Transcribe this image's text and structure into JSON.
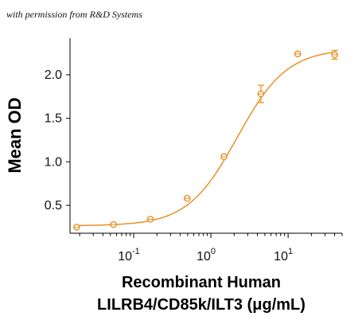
{
  "credit": "with permission from R&D Systems",
  "chart_data": {
    "type": "scatter",
    "x_scale": "log",
    "y_scale": "linear",
    "xlim": [
      0.015,
      50
    ],
    "ylim": [
      0.18,
      2.42
    ],
    "grid": false,
    "legend": "none",
    "ylabel": "Mean OD",
    "xlabel_lines": [
      "Recombinant Human",
      "LILRB4/CD85k/ILT3 (μg/mL)"
    ],
    "x_ticks": [
      {
        "value": 0.1,
        "base": "10",
        "exp": "-1"
      },
      {
        "value": 1,
        "base": "10",
        "exp": "0"
      },
      {
        "value": 10,
        "base": "10",
        "exp": "1"
      }
    ],
    "y_ticks": [
      {
        "value": 0.5,
        "label": "0.5"
      },
      {
        "value": 1.0,
        "label": "1.0"
      },
      {
        "value": 1.5,
        "label": "1.5"
      },
      {
        "value": 2.0,
        "label": "2.0"
      }
    ],
    "series": [
      {
        "color": "#e8891a",
        "points": [
          {
            "x": 0.0183,
            "y": 0.25,
            "err": 0.01
          },
          {
            "x": 0.0549,
            "y": 0.28,
            "err": 0.01
          },
          {
            "x": 0.165,
            "y": 0.34,
            "err": 0.01
          },
          {
            "x": 0.494,
            "y": 0.58,
            "err": 0.01
          },
          {
            "x": 1.48,
            "y": 1.06,
            "err": 0.02
          },
          {
            "x": 4.44,
            "y": 1.78,
            "err": 0.1
          },
          {
            "x": 13.3,
            "y": 2.24,
            "err": 0.01
          },
          {
            "x": 40.0,
            "y": 2.23,
            "err": 0.05
          }
        ],
        "fit": {
          "model": "4PL",
          "bottom": 0.265,
          "top": 2.3,
          "ec50": 2.2,
          "hill": 1.35
        }
      }
    ]
  }
}
